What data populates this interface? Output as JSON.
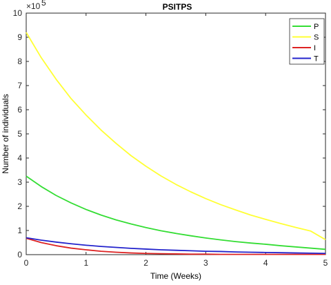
{
  "chart_data": {
    "type": "line",
    "title": "PSITPS",
    "xlabel": "Time (Weeks)",
    "ylabel": "Number of individuals",
    "y_exponent_label": "×10",
    "y_exponent_power": "5",
    "xlim": [
      0,
      5
    ],
    "ylim": [
      0,
      10
    ],
    "x_ticks": [
      0,
      1,
      2,
      3,
      4,
      5
    ],
    "y_ticks": [
      0,
      1,
      2,
      3,
      4,
      5,
      6,
      7,
      8,
      9,
      10
    ],
    "x_tick_labels": [
      "0",
      "1",
      "2",
      "3",
      "4",
      "5"
    ],
    "y_tick_labels": [
      "0",
      "1",
      "2",
      "3",
      "4",
      "5",
      "6",
      "7",
      "8",
      "9",
      "10"
    ],
    "legend_position": "top-right",
    "grid": false,
    "x": [
      0,
      0.25,
      0.5,
      0.75,
      1,
      1.25,
      1.5,
      1.75,
      2,
      2.25,
      2.5,
      2.75,
      3,
      3.25,
      3.5,
      3.75,
      4,
      4.25,
      4.5,
      4.75,
      5
    ],
    "series": [
      {
        "name": "P",
        "color": "#33dd33",
        "values": [
          3.25,
          2.82,
          2.45,
          2.14,
          1.87,
          1.64,
          1.44,
          1.27,
          1.12,
          0.99,
          0.88,
          0.78,
          0.69,
          0.61,
          0.54,
          0.48,
          0.43,
          0.37,
          0.32,
          0.27,
          0.22
        ]
      },
      {
        "name": "S",
        "color": "#ffff33",
        "values": [
          9.2,
          8.16,
          7.26,
          6.46,
          5.78,
          5.16,
          4.61,
          4.1,
          3.66,
          3.26,
          2.91,
          2.6,
          2.32,
          2.07,
          1.85,
          1.64,
          1.46,
          1.29,
          1.13,
          0.98,
          0.62
        ]
      },
      {
        "name": "I",
        "color": "#dd2222",
        "values": [
          0.68,
          0.5,
          0.37,
          0.27,
          0.2,
          0.14,
          0.1,
          0.07,
          0.05,
          0.04,
          0.03,
          0.02,
          0.02,
          0.01,
          0.01,
          0.01,
          0.01,
          0.01,
          0.01,
          0.01,
          0.01
        ]
      },
      {
        "name": "T",
        "color": "#2222cc",
        "values": [
          0.7,
          0.6,
          0.52,
          0.45,
          0.39,
          0.34,
          0.3,
          0.26,
          0.23,
          0.2,
          0.18,
          0.16,
          0.14,
          0.13,
          0.11,
          0.1,
          0.09,
          0.08,
          0.07,
          0.06,
          0.05
        ]
      }
    ]
  }
}
